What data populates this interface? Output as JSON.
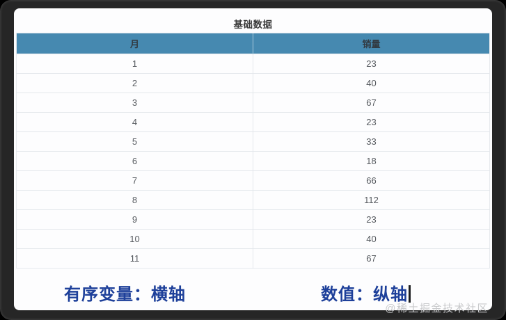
{
  "colors": {
    "header_bg": "#4689b0",
    "header_text": "#323a41",
    "annotation_blue": "#1e409a"
  },
  "table": {
    "title": "基础数据",
    "columns": [
      "月",
      "销量"
    ],
    "rows": [
      [
        "1",
        "23"
      ],
      [
        "2",
        "40"
      ],
      [
        "3",
        "67"
      ],
      [
        "4",
        "23"
      ],
      [
        "5",
        "33"
      ],
      [
        "6",
        "18"
      ],
      [
        "7",
        "66"
      ],
      [
        "8",
        "112"
      ],
      [
        "9",
        "23"
      ],
      [
        "10",
        "40"
      ],
      [
        "11",
        "67"
      ]
    ]
  },
  "annotations": {
    "left": "有序变量：横轴",
    "right": "数值：纵轴"
  },
  "watermark": "@稀土掘金技术社区"
}
